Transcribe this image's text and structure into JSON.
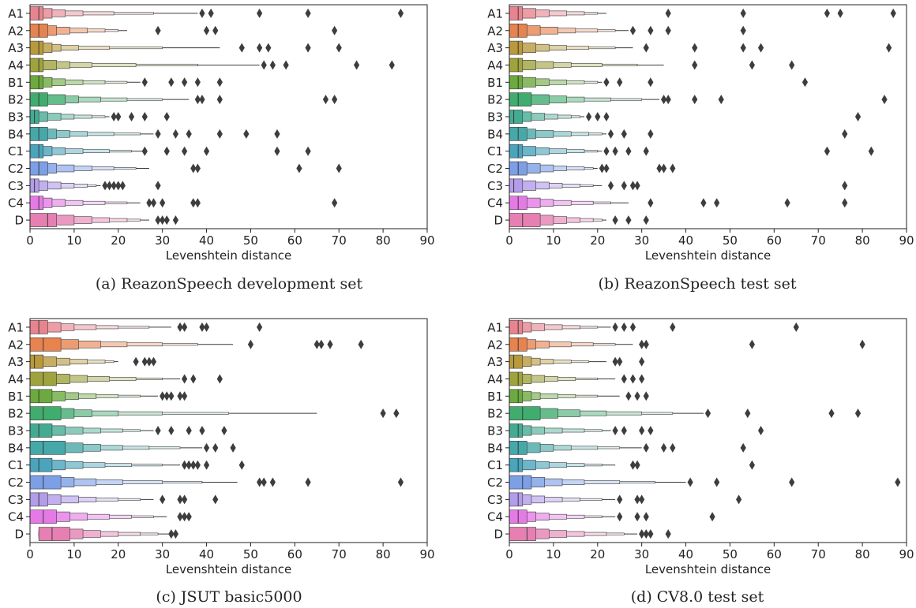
{
  "palette": [
    "#e8848f",
    "#e6834f",
    "#b89a3c",
    "#9fa33d",
    "#6caa3f",
    "#40ad6f",
    "#44ab93",
    "#46a8a8",
    "#49a4bc",
    "#7c9fe6",
    "#b39cea",
    "#e57ae6",
    "#e680b3"
  ],
  "chart_data": [
    {
      "type": "boxen",
      "caption": "(a) ReazonSpeech development set",
      "xlabel": "Levenshtein distance",
      "xlim": [
        0,
        90
      ],
      "xticks": [
        0,
        10,
        20,
        30,
        40,
        50,
        60,
        70,
        80,
        90
      ],
      "categories": [
        "A1",
        "A2",
        "A3",
        "A4",
        "B1",
        "B2",
        "B3",
        "B4",
        "C1",
        "C2",
        "C3",
        "C4",
        "D"
      ],
      "series": [
        {
          "median": 2,
          "q": [
            0,
            3,
            5,
            8,
            12,
            19,
            28
          ],
          "whisker": 38,
          "outliers": [
            39,
            41,
            52,
            63,
            84
          ]
        },
        {
          "median": 2,
          "q": [
            0,
            4,
            6,
            9,
            13,
            17,
            20
          ],
          "whisker": 22,
          "outliers": [
            29,
            40,
            42,
            69
          ]
        },
        {
          "median": 2,
          "q": [
            0,
            3,
            5,
            7,
            11,
            18,
            30
          ],
          "whisker": 43,
          "outliers": [
            48,
            52,
            54,
            63,
            70
          ]
        },
        {
          "median": 2,
          "q": [
            0,
            3,
            6,
            9,
            14,
            24,
            38
          ],
          "whisker": 52,
          "outliers": [
            53,
            55,
            58,
            74,
            82
          ]
        },
        {
          "median": 2,
          "q": [
            0,
            3,
            5,
            8,
            12,
            17,
            22
          ],
          "whisker": 25,
          "outliers": [
            26,
            32,
            35,
            38,
            43
          ]
        },
        {
          "median": 2,
          "q": [
            0,
            4,
            8,
            11,
            16,
            22,
            30
          ],
          "whisker": 36,
          "outliers": [
            38,
            39,
            43,
            67,
            69
          ]
        },
        {
          "median": 1,
          "q": [
            0,
            2,
            4,
            7,
            10,
            14,
            17
          ],
          "whisker": 18,
          "outliers": [
            19,
            20,
            23,
            26,
            31
          ]
        },
        {
          "median": 2,
          "q": [
            0,
            4,
            6,
            9,
            13,
            19,
            25
          ],
          "whisker": 28,
          "outliers": [
            29,
            33,
            36,
            43,
            49,
            56
          ]
        },
        {
          "median": 2,
          "q": [
            0,
            3,
            5,
            8,
            12,
            18,
            23
          ],
          "whisker": 26,
          "outliers": [
            26,
            31,
            35,
            40,
            56,
            63
          ]
        },
        {
          "median": 2,
          "q": [
            0,
            4,
            6,
            10,
            14,
            19,
            24
          ],
          "whisker": 27,
          "outliers": [
            37,
            38,
            61,
            70
          ]
        },
        {
          "median": 1,
          "q": [
            0,
            2,
            4,
            7,
            10,
            13,
            15
          ],
          "whisker": 16,
          "outliers": [
            17,
            18,
            19,
            20,
            21,
            29
          ]
        },
        {
          "median": 2,
          "q": [
            0,
            3,
            5,
            8,
            12,
            17,
            22
          ],
          "whisker": 25,
          "outliers": [
            27,
            28,
            30,
            37,
            38,
            69
          ]
        },
        {
          "median": 4,
          "q": [
            0,
            6,
            10,
            14,
            18,
            22,
            25
          ],
          "whisker": 27,
          "outliers": [
            29,
            30,
            31,
            33
          ]
        }
      ]
    },
    {
      "type": "boxen",
      "caption": "(b) ReazonSpeech test set",
      "xlabel": "Levenshtein distance",
      "xlim": [
        0,
        90
      ],
      "xticks": [
        0,
        10,
        20,
        30,
        40,
        50,
        60,
        70,
        80,
        90
      ],
      "categories": [
        "A1",
        "A2",
        "A3",
        "A4",
        "B1",
        "B2",
        "B3",
        "B4",
        "C1",
        "C2",
        "C3",
        "C4",
        "D"
      ],
      "series": [
        {
          "median": 2,
          "q": [
            0,
            3,
            6,
            9,
            13,
            17,
            20
          ],
          "whisker": 22,
          "outliers": [
            36,
            53,
            72,
            75,
            87
          ]
        },
        {
          "median": 2,
          "q": [
            0,
            4,
            7,
            11,
            15,
            20,
            24
          ],
          "whisker": 27,
          "outliers": [
            28,
            32,
            36,
            53
          ]
        },
        {
          "median": 2,
          "q": [
            0,
            3,
            6,
            9,
            13,
            18,
            24
          ],
          "whisker": 28,
          "outliers": [
            31,
            42,
            53,
            57,
            86
          ]
        },
        {
          "median": 2,
          "q": [
            0,
            3,
            6,
            10,
            14,
            21,
            29
          ],
          "whisker": 35,
          "outliers": [
            42,
            55,
            64
          ]
        },
        {
          "median": 2,
          "q": [
            0,
            3,
            6,
            9,
            13,
            17,
            20
          ],
          "whisker": 21,
          "outliers": [
            22,
            25,
            32,
            67
          ]
        },
        {
          "median": 2,
          "q": [
            0,
            5,
            9,
            13,
            17,
            23,
            30
          ],
          "whisker": 34,
          "outliers": [
            35,
            36,
            42,
            48,
            85
          ]
        },
        {
          "median": 1,
          "q": [
            0,
            3,
            5,
            8,
            11,
            14,
            16
          ],
          "whisker": 17,
          "outliers": [
            18,
            20,
            22,
            79
          ]
        },
        {
          "median": 2,
          "q": [
            0,
            4,
            6,
            10,
            14,
            18,
            21
          ],
          "whisker": 22,
          "outliers": [
            23,
            26,
            32,
            76
          ]
        },
        {
          "median": 2,
          "q": [
            0,
            3,
            6,
            9,
            13,
            17,
            20
          ],
          "whisker": 21,
          "outliers": [
            22,
            24,
            27,
            31,
            72,
            82
          ]
        },
        {
          "median": 2,
          "q": [
            0,
            4,
            7,
            10,
            13,
            17,
            19
          ],
          "whisker": 20,
          "outliers": [
            21,
            22,
            34,
            35,
            37
          ]
        },
        {
          "median": 1,
          "q": [
            0,
            3,
            6,
            9,
            12,
            16,
            19
          ],
          "whisker": 21,
          "outliers": [
            23,
            26,
            28,
            29,
            76
          ]
        },
        {
          "median": 2,
          "q": [
            0,
            4,
            7,
            10,
            14,
            19,
            23
          ],
          "whisker": 27,
          "outliers": [
            32,
            44,
            47,
            63,
            76
          ]
        },
        {
          "median": 3,
          "q": [
            0,
            7,
            10,
            13,
            16,
            19,
            21
          ],
          "whisker": 22,
          "outliers": [
            24,
            27,
            31
          ]
        }
      ]
    },
    {
      "type": "boxen",
      "caption": "(c) JSUT basic5000",
      "xlabel": "Levenshtein distance",
      "xlim": [
        0,
        90
      ],
      "xticks": [
        0,
        10,
        20,
        30,
        40,
        50,
        60,
        70,
        80,
        90
      ],
      "categories": [
        "A1",
        "A2",
        "A3",
        "A4",
        "B1",
        "B2",
        "B3",
        "B4",
        "C1",
        "C2",
        "C3",
        "C4",
        "D"
      ],
      "series": [
        {
          "median": 2,
          "q": [
            0,
            4,
            7,
            10,
            15,
            20,
            27
          ],
          "whisker": 32,
          "outliers": [
            34,
            35,
            39,
            40,
            52
          ]
        },
        {
          "median": 3,
          "q": [
            0,
            7,
            11,
            16,
            22,
            30,
            38
          ],
          "whisker": 46,
          "outliers": [
            50,
            65,
            66,
            68,
            75
          ]
        },
        {
          "median": 1,
          "q": [
            0,
            3,
            6,
            9,
            13,
            17,
            19
          ],
          "whisker": 20,
          "outliers": [
            24,
            26,
            27,
            28
          ]
        },
        {
          "median": 3,
          "q": [
            0,
            6,
            9,
            13,
            18,
            24,
            30
          ],
          "whisker": 34,
          "outliers": [
            35,
            37,
            43
          ]
        },
        {
          "median": 2,
          "q": [
            0,
            5,
            8,
            11,
            15,
            20,
            25
          ],
          "whisker": 29,
          "outliers": [
            30,
            31,
            32,
            34,
            35
          ]
        },
        {
          "median": 3,
          "q": [
            0,
            7,
            10,
            14,
            20,
            30,
            45
          ],
          "whisker": 65,
          "outliers": [
            80,
            83
          ]
        },
        {
          "median": 2,
          "q": [
            0,
            5,
            8,
            12,
            16,
            21,
            25
          ],
          "whisker": 28,
          "outliers": [
            29,
            32,
            36,
            39,
            44
          ]
        },
        {
          "median": 3,
          "q": [
            0,
            8,
            12,
            16,
            21,
            27,
            34
          ],
          "whisker": 39,
          "outliers": [
            40,
            42,
            46
          ]
        },
        {
          "median": 2,
          "q": [
            0,
            5,
            8,
            12,
            17,
            23,
            30
          ],
          "whisker": 34,
          "outliers": [
            35,
            36,
            37,
            38,
            40,
            48
          ]
        },
        {
          "median": 3,
          "q": [
            0,
            7,
            10,
            15,
            21,
            30,
            39
          ],
          "whisker": 47,
          "outliers": [
            52,
            53,
            55,
            63,
            84
          ]
        },
        {
          "median": 2,
          "q": [
            0,
            4,
            7,
            11,
            15,
            20,
            25
          ],
          "whisker": 28,
          "outliers": [
            30,
            34,
            35,
            42
          ]
        },
        {
          "median": 3,
          "q": [
            0,
            6,
            9,
            13,
            18,
            23,
            28
          ],
          "whisker": 31,
          "outliers": [
            34,
            35,
            36
          ]
        },
        {
          "median": 5,
          "q": [
            2,
            9,
            12,
            16,
            20,
            25,
            29
          ],
          "whisker": 32,
          "outliers": [
            32,
            33
          ]
        }
      ]
    },
    {
      "type": "boxen",
      "caption": "(d) CV8.0 test set",
      "xlabel": "Levenshtein distance",
      "xlim": [
        0,
        90
      ],
      "xticks": [
        0,
        10,
        20,
        30,
        40,
        50,
        60,
        70,
        80,
        90
      ],
      "categories": [
        "A1",
        "A2",
        "A3",
        "A4",
        "B1",
        "B2",
        "B3",
        "B4",
        "C1",
        "C2",
        "C3",
        "C4",
        "D"
      ],
      "series": [
        {
          "median": 2,
          "q": [
            0,
            3,
            5,
            8,
            12,
            16,
            20
          ],
          "whisker": 23,
          "outliers": [
            24,
            26,
            28,
            37,
            65
          ]
        },
        {
          "median": 2,
          "q": [
            0,
            4,
            6,
            9,
            14,
            19,
            24
          ],
          "whisker": 28,
          "outliers": [
            30,
            31,
            55,
            80
          ]
        },
        {
          "median": 1,
          "q": [
            0,
            3,
            5,
            7,
            10,
            14,
            18
          ],
          "whisker": 22,
          "outliers": [
            24,
            25,
            30
          ]
        },
        {
          "median": 2,
          "q": [
            0,
            3,
            5,
            8,
            11,
            15,
            20
          ],
          "whisker": 24,
          "outliers": [
            26,
            28,
            30
          ]
        },
        {
          "median": 2,
          "q": [
            0,
            3,
            5,
            7,
            11,
            15,
            20
          ],
          "whisker": 25,
          "outliers": [
            27,
            29,
            31
          ]
        },
        {
          "median": 3,
          "q": [
            0,
            7,
            11,
            16,
            22,
            30,
            37
          ],
          "whisker": 44,
          "outliers": [
            45,
            54,
            73,
            79
          ]
        },
        {
          "median": 2,
          "q": [
            0,
            3,
            5,
            8,
            12,
            17,
            21
          ],
          "whisker": 23,
          "outliers": [
            24,
            26,
            30,
            32,
            57
          ]
        },
        {
          "median": 2,
          "q": [
            0,
            4,
            7,
            10,
            14,
            20,
            25
          ],
          "whisker": 30,
          "outliers": [
            31,
            35,
            37,
            53
          ]
        },
        {
          "median": 2,
          "q": [
            0,
            3,
            6,
            9,
            13,
            17,
            21
          ],
          "whisker": 24,
          "outliers": [
            28,
            29,
            55
          ]
        },
        {
          "median": 3,
          "q": [
            0,
            5,
            8,
            12,
            17,
            25,
            33
          ],
          "whisker": 40,
          "outliers": [
            41,
            47,
            64,
            88
          ]
        },
        {
          "median": 2,
          "q": [
            0,
            3,
            5,
            8,
            12,
            16,
            21
          ],
          "whisker": 24,
          "outliers": [
            25,
            29,
            30,
            52
          ]
        },
        {
          "median": 2,
          "q": [
            0,
            4,
            6,
            9,
            13,
            17,
            21
          ],
          "whisker": 24,
          "outliers": [
            25,
            29,
            31,
            46
          ]
        },
        {
          "median": 4,
          "q": [
            0,
            6,
            9,
            13,
            17,
            22,
            26
          ],
          "whisker": 29,
          "outliers": [
            30,
            31,
            32,
            36
          ]
        }
      ]
    }
  ]
}
